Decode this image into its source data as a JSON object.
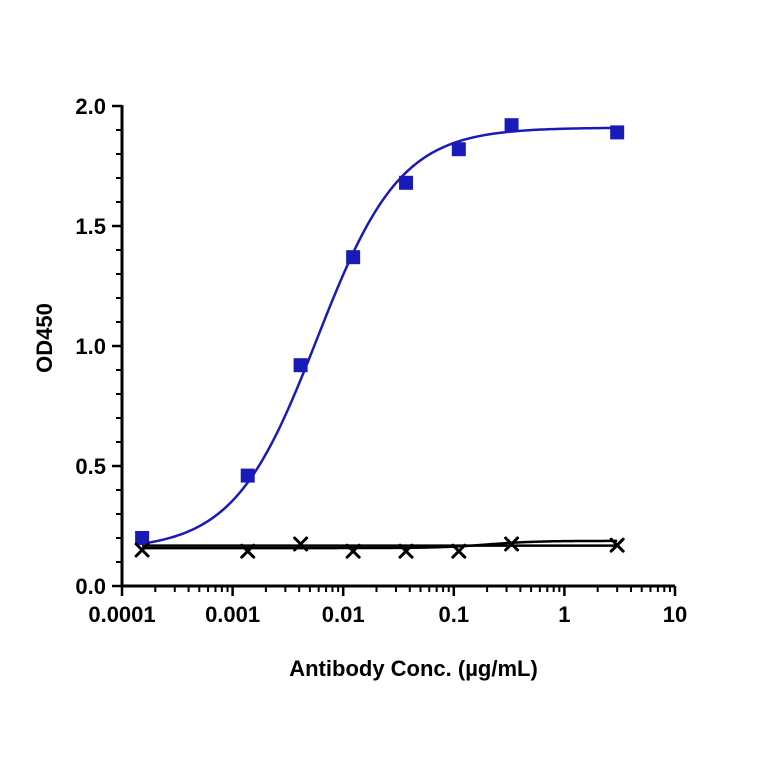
{
  "chart_data": {
    "type": "scatter",
    "x_scale": "log",
    "xlabel": "Antibody Conc. (µg/mL)",
    "ylabel": "OD450",
    "xlim": [
      0.0001,
      10
    ],
    "ylim": [
      0,
      2.0
    ],
    "x_ticks": [
      0.0001,
      0.001,
      0.01,
      0.1,
      1,
      10
    ],
    "x_tick_labels": [
      "0.0001",
      "0.001",
      "0.01",
      "0.1",
      "1",
      "10"
    ],
    "y_ticks": [
      0,
      0.5,
      1.0,
      1.5,
      2.0
    ],
    "y_tick_labels": [
      "0.0",
      "0.5",
      "1.0",
      "1.5",
      "2.0"
    ],
    "grid": false,
    "series": [
      {
        "marker": "square",
        "color": "#1a1ab8",
        "x": [
          0.000152,
          0.00137,
          0.00412,
          0.0123,
          0.037,
          0.111,
          0.333,
          3.0
        ],
        "y": [
          0.2,
          0.46,
          0.92,
          1.37,
          1.68,
          1.82,
          1.92,
          1.89
        ],
        "fit": "4PL"
      },
      {
        "marker": "x",
        "color": "#000000",
        "x": [
          0.000152,
          0.00137,
          0.00412,
          0.0123,
          0.037,
          0.111,
          0.333,
          3.0
        ],
        "y": [
          0.15,
          0.145,
          0.175,
          0.145,
          0.145,
          0.145,
          0.175,
          0.17
        ],
        "fit": "4PL"
      }
    ]
  }
}
